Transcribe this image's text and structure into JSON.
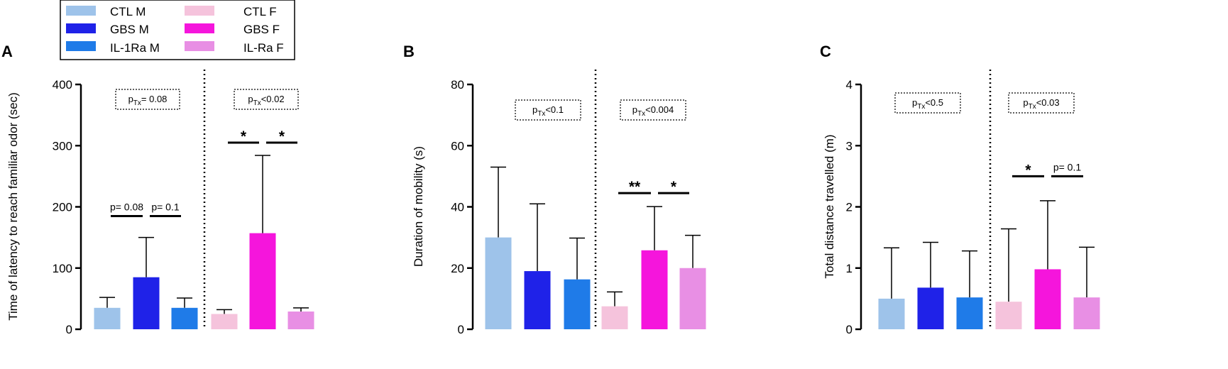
{
  "legend": {
    "items": [
      {
        "label": "CTL M",
        "color": "#9ec3ea"
      },
      {
        "label": "GBS M",
        "color": "#1f22e8"
      },
      {
        "label": "IL-1Ra M",
        "color": "#1f7be8"
      },
      {
        "label": "CTL F",
        "color": "#f5c3dc"
      },
      {
        "label": "GBS F",
        "color": "#f515dc"
      },
      {
        "label": "IL-Ra F",
        "color": "#e88fe4"
      }
    ]
  },
  "chart_data": [
    {
      "type": "bar",
      "panel": "A",
      "ylabel": "Time of latency to reach familiar odor (sec)",
      "ylim": [
        0,
        400
      ],
      "yticks": [
        0,
        100,
        200,
        300,
        400
      ],
      "categories": [
        "CTL M",
        "GBS M",
        "IL-1Ra M",
        "CTL F",
        "GBS F",
        "IL-Ra F"
      ],
      "values": [
        35,
        85,
        35,
        25,
        157,
        29
      ],
      "errors": [
        17,
        65,
        16,
        7,
        127,
        6
      ],
      "annotations": [
        {
          "base": "p",
          "sub": "Tx",
          "rest": "= 0.08",
          "group": "male"
        },
        {
          "base": "p",
          "sub": "Tx",
          "rest": "<0.02",
          "group": "female"
        }
      ],
      "comparisons": [
        {
          "from": 0,
          "to": 1,
          "label": "p= 0.08",
          "y": 185,
          "kind": "p"
        },
        {
          "from": 1,
          "to": 2,
          "label": "p= 0.1",
          "y": 185,
          "kind": "p"
        },
        {
          "from": 3,
          "to": 4,
          "label": "*",
          "y": 305,
          "kind": "star"
        },
        {
          "from": 4,
          "to": 5,
          "label": "*",
          "y": 305,
          "kind": "star"
        }
      ]
    },
    {
      "type": "bar",
      "panel": "B",
      "ylabel": "Duration of mobility (s)",
      "ylim": [
        0,
        80
      ],
      "yticks": [
        0,
        20,
        40,
        60,
        80
      ],
      "categories": [
        "CTL M",
        "GBS M",
        "IL-1Ra M",
        "CTL F",
        "GBS F",
        "IL-Ra F"
      ],
      "values": [
        30,
        19,
        16.3,
        7.5,
        25.8,
        20
      ],
      "errors": [
        23,
        22,
        13.5,
        4.7,
        14.3,
        10.7
      ],
      "annotations": [
        {
          "base": "p",
          "sub": "Tx",
          "rest": "<0.1",
          "group": "male"
        },
        {
          "base": "p",
          "sub": "Tx",
          "rest": "<0.004",
          "group": "female"
        }
      ],
      "comparisons": [
        {
          "from": 3,
          "to": 4,
          "label": "**",
          "y": 44.5,
          "kind": "star"
        },
        {
          "from": 4,
          "to": 5,
          "label": "*",
          "y": 44.5,
          "kind": "star"
        }
      ]
    },
    {
      "type": "bar",
      "panel": "C",
      "ylabel": "Total distance travelled (m)",
      "ylim": [
        0,
        4
      ],
      "yticks": [
        0,
        1,
        2,
        3,
        4
      ],
      "categories": [
        "CTL M",
        "GBS M",
        "IL-1Ra M",
        "CTL F",
        "GBS F",
        "IL-Ra F"
      ],
      "values": [
        0.5,
        0.68,
        0.52,
        0.45,
        0.98,
        0.52
      ],
      "errors": [
        0.83,
        0.74,
        0.76,
        1.19,
        1.12,
        0.82
      ],
      "annotations": [
        {
          "base": "p",
          "sub": "Tx",
          "rest": "<0.5",
          "group": "male"
        },
        {
          "base": "p",
          "sub": "Tx",
          "rest": "<0.03",
          "group": "female"
        }
      ],
      "comparisons": [
        {
          "from": 3,
          "to": 4,
          "label": "*",
          "y": 2.5,
          "kind": "star"
        },
        {
          "from": 4,
          "to": 5,
          "label": "p= 0.1",
          "y": 2.5,
          "kind": "p"
        }
      ]
    }
  ]
}
